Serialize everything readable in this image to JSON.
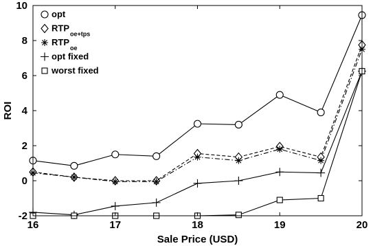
{
  "chart_data": {
    "type": "line",
    "xlabel": "Sale Price (USD)",
    "ylabel": "ROI",
    "xlim": [
      16,
      20
    ],
    "ylim": [
      -2,
      10
    ],
    "xticks": [
      16,
      17,
      18,
      19,
      20
    ],
    "yticks": [
      -2,
      0,
      2,
      4,
      6,
      8,
      10
    ],
    "grid": false,
    "legend_position": "top-left",
    "x": [
      16,
      16.5,
      17,
      17.5,
      18,
      18.5,
      19,
      19.5,
      20
    ],
    "series": [
      {
        "name": "opt",
        "name_base": "opt",
        "name_sub": "",
        "marker": "circle",
        "line": "solid",
        "values": [
          1.15,
          0.85,
          1.5,
          1.4,
          3.25,
          3.2,
          4.9,
          3.9,
          9.45
        ]
      },
      {
        "name": "RTP oe+tps",
        "name_base": "RTP",
        "name_sub": "oe+tps",
        "marker": "diamond",
        "line": "dashed",
        "values": [
          0.5,
          0.2,
          0.0,
          0.0,
          1.55,
          1.35,
          1.95,
          1.35,
          7.75
        ]
      },
      {
        "name": "RTP oe",
        "name_base": "RTP",
        "name_sub": "oe",
        "marker": "star",
        "line": "dashdot",
        "values": [
          0.45,
          0.2,
          -0.05,
          -0.05,
          1.35,
          1.15,
          1.8,
          1.15,
          7.5
        ]
      },
      {
        "name": "opt fixed",
        "name_base": "opt fixed",
        "name_sub": "",
        "marker": "plus",
        "line": "solid",
        "values": [
          -1.8,
          -1.95,
          -1.45,
          -1.25,
          -0.15,
          0.0,
          0.5,
          0.45,
          6.25
        ]
      },
      {
        "name": "worst fixed",
        "name_base": "worst fixed",
        "name_sub": "",
        "marker": "square",
        "line": "solid",
        "values": [
          -2.0,
          -2.0,
          -2.0,
          -2.0,
          -2.0,
          -1.95,
          -1.1,
          -1.0,
          6.25
        ]
      }
    ],
    "colors": {
      "line": "#000000",
      "background": "#ffffff"
    }
  }
}
